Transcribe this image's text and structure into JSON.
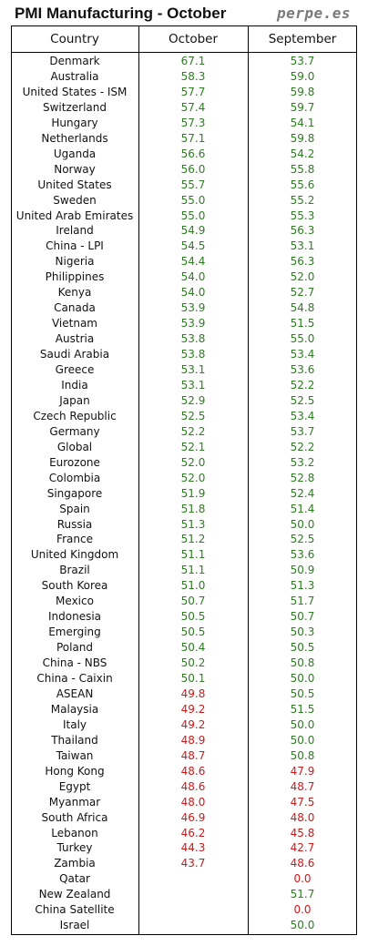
{
  "header": {
    "title": "PMI Manufacturing - October",
    "brand": "perpe.es"
  },
  "colors": {
    "expansion": "#2e7d22",
    "contraction": "#d01818",
    "threshold": 50
  },
  "chart_data": {
    "type": "table",
    "title": "PMI Manufacturing - October",
    "columns": [
      "Country",
      "October",
      "September"
    ],
    "rows": [
      {
        "country": "Denmark",
        "october": "67.1",
        "september": "53.7"
      },
      {
        "country": "Australia",
        "october": "58.3",
        "september": "59.0"
      },
      {
        "country": "United States - ISM",
        "october": "57.7",
        "september": "59.8"
      },
      {
        "country": "Switzerland",
        "october": "57.4",
        "september": "59.7"
      },
      {
        "country": "Hungary",
        "october": "57.3",
        "september": "54.1"
      },
      {
        "country": "Netherlands",
        "october": "57.1",
        "september": "59.8"
      },
      {
        "country": "Uganda",
        "october": "56.6",
        "september": "54.2"
      },
      {
        "country": "Norway",
        "october": "56.0",
        "september": "55.8"
      },
      {
        "country": "United States",
        "october": "55.7",
        "september": "55.6"
      },
      {
        "country": "Sweden",
        "october": "55.0",
        "september": "55.2"
      },
      {
        "country": "United Arab Emirates",
        "october": "55.0",
        "september": "55.3"
      },
      {
        "country": "Ireland",
        "october": "54.9",
        "september": "56.3"
      },
      {
        "country": "China - LPI",
        "october": "54.5",
        "september": "53.1"
      },
      {
        "country": "Nigeria",
        "october": "54.4",
        "september": "56.3"
      },
      {
        "country": "Philippines",
        "october": "54.0",
        "september": "52.0"
      },
      {
        "country": "Kenya",
        "october": "54.0",
        "september": "52.7"
      },
      {
        "country": "Canada",
        "october": "53.9",
        "september": "54.8"
      },
      {
        "country": "Vietnam",
        "october": "53.9",
        "september": "51.5"
      },
      {
        "country": "Austria",
        "october": "53.8",
        "september": "55.0"
      },
      {
        "country": "Saudi Arabia",
        "october": "53.8",
        "september": "53.4"
      },
      {
        "country": "Greece",
        "october": "53.1",
        "september": "53.6"
      },
      {
        "country": "India",
        "october": "53.1",
        "september": "52.2"
      },
      {
        "country": "Japan",
        "october": "52.9",
        "september": "52.5"
      },
      {
        "country": "Czech Republic",
        "october": "52.5",
        "september": "53.4"
      },
      {
        "country": "Germany",
        "october": "52.2",
        "september": "53.7"
      },
      {
        "country": "Global",
        "october": "52.1",
        "september": "52.2"
      },
      {
        "country": "Eurozone",
        "october": "52.0",
        "september": "53.2"
      },
      {
        "country": "Colombia",
        "october": "52.0",
        "september": "52.8"
      },
      {
        "country": "Singapore",
        "october": "51.9",
        "september": "52.4"
      },
      {
        "country": "Spain",
        "october": "51.8",
        "september": "51.4"
      },
      {
        "country": "Russia",
        "october": "51.3",
        "september": "50.0"
      },
      {
        "country": "France",
        "october": "51.2",
        "september": "52.5"
      },
      {
        "country": "United Kingdom",
        "october": "51.1",
        "september": "53.6"
      },
      {
        "country": "Brazil",
        "october": "51.1",
        "september": "50.9"
      },
      {
        "country": "South Korea",
        "october": "51.0",
        "september": "51.3"
      },
      {
        "country": "Mexico",
        "october": "50.7",
        "september": "51.7"
      },
      {
        "country": "Indonesia",
        "october": "50.5",
        "september": "50.7"
      },
      {
        "country": "Emerging",
        "october": "50.5",
        "september": "50.3"
      },
      {
        "country": "Poland",
        "october": "50.4",
        "september": "50.5"
      },
      {
        "country": "China - NBS",
        "october": "50.2",
        "september": "50.8"
      },
      {
        "country": "China - Caixin",
        "october": "50.1",
        "september": "50.0"
      },
      {
        "country": "ASEAN",
        "october": "49.8",
        "september": "50.5"
      },
      {
        "country": "Malaysia",
        "october": "49.2",
        "september": "51.5"
      },
      {
        "country": "Italy",
        "october": "49.2",
        "september": "50.0"
      },
      {
        "country": "Thailand",
        "october": "48.9",
        "september": "50.0"
      },
      {
        "country": "Taiwan",
        "october": "48.7",
        "september": "50.8"
      },
      {
        "country": "Hong Kong",
        "october": "48.6",
        "september": "47.9"
      },
      {
        "country": "Egypt",
        "october": "48.6",
        "september": "48.7"
      },
      {
        "country": "Myanmar",
        "october": "48.0",
        "september": "47.5"
      },
      {
        "country": "South Africa",
        "october": "46.9",
        "september": "48.0"
      },
      {
        "country": "Lebanon",
        "october": "46.2",
        "september": "45.8"
      },
      {
        "country": "Turkey",
        "october": "44.3",
        "september": "42.7"
      },
      {
        "country": "Zambia",
        "october": "43.7",
        "september": "48.6"
      },
      {
        "country": "Qatar",
        "october": "",
        "september": "0.0"
      },
      {
        "country": "New Zealand",
        "october": "",
        "september": "51.7"
      },
      {
        "country": "China Satellite",
        "october": "",
        "september": "0.0"
      },
      {
        "country": "Israel",
        "october": "",
        "september": "50.0"
      }
    ]
  }
}
